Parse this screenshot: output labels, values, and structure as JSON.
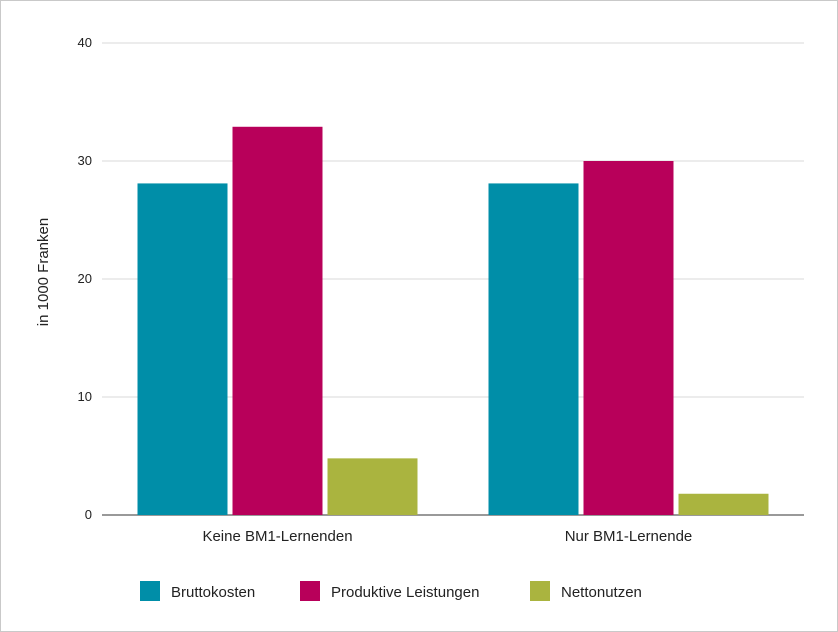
{
  "chart_data": {
    "type": "bar",
    "title": "",
    "xlabel": "",
    "ylabel": "in 1000 Franken",
    "ylim": [
      0,
      40
    ],
    "yticks": [
      0,
      10,
      20,
      30,
      40
    ],
    "grid": true,
    "legend_position": "bottom",
    "categories": [
      "Keine BM1-Lernenden",
      "Nur BM1-Lernende"
    ],
    "series": [
      {
        "name": "Bruttokosten",
        "color": "#008ea8",
        "values": [
          28.1,
          28.1
        ]
      },
      {
        "name": "Produktive Leistungen",
        "color": "#b8005a",
        "values": [
          32.9,
          30.0
        ]
      },
      {
        "name": "Nettonutzen",
        "color": "#aab43f",
        "values": [
          4.8,
          1.8
        ]
      }
    ]
  }
}
